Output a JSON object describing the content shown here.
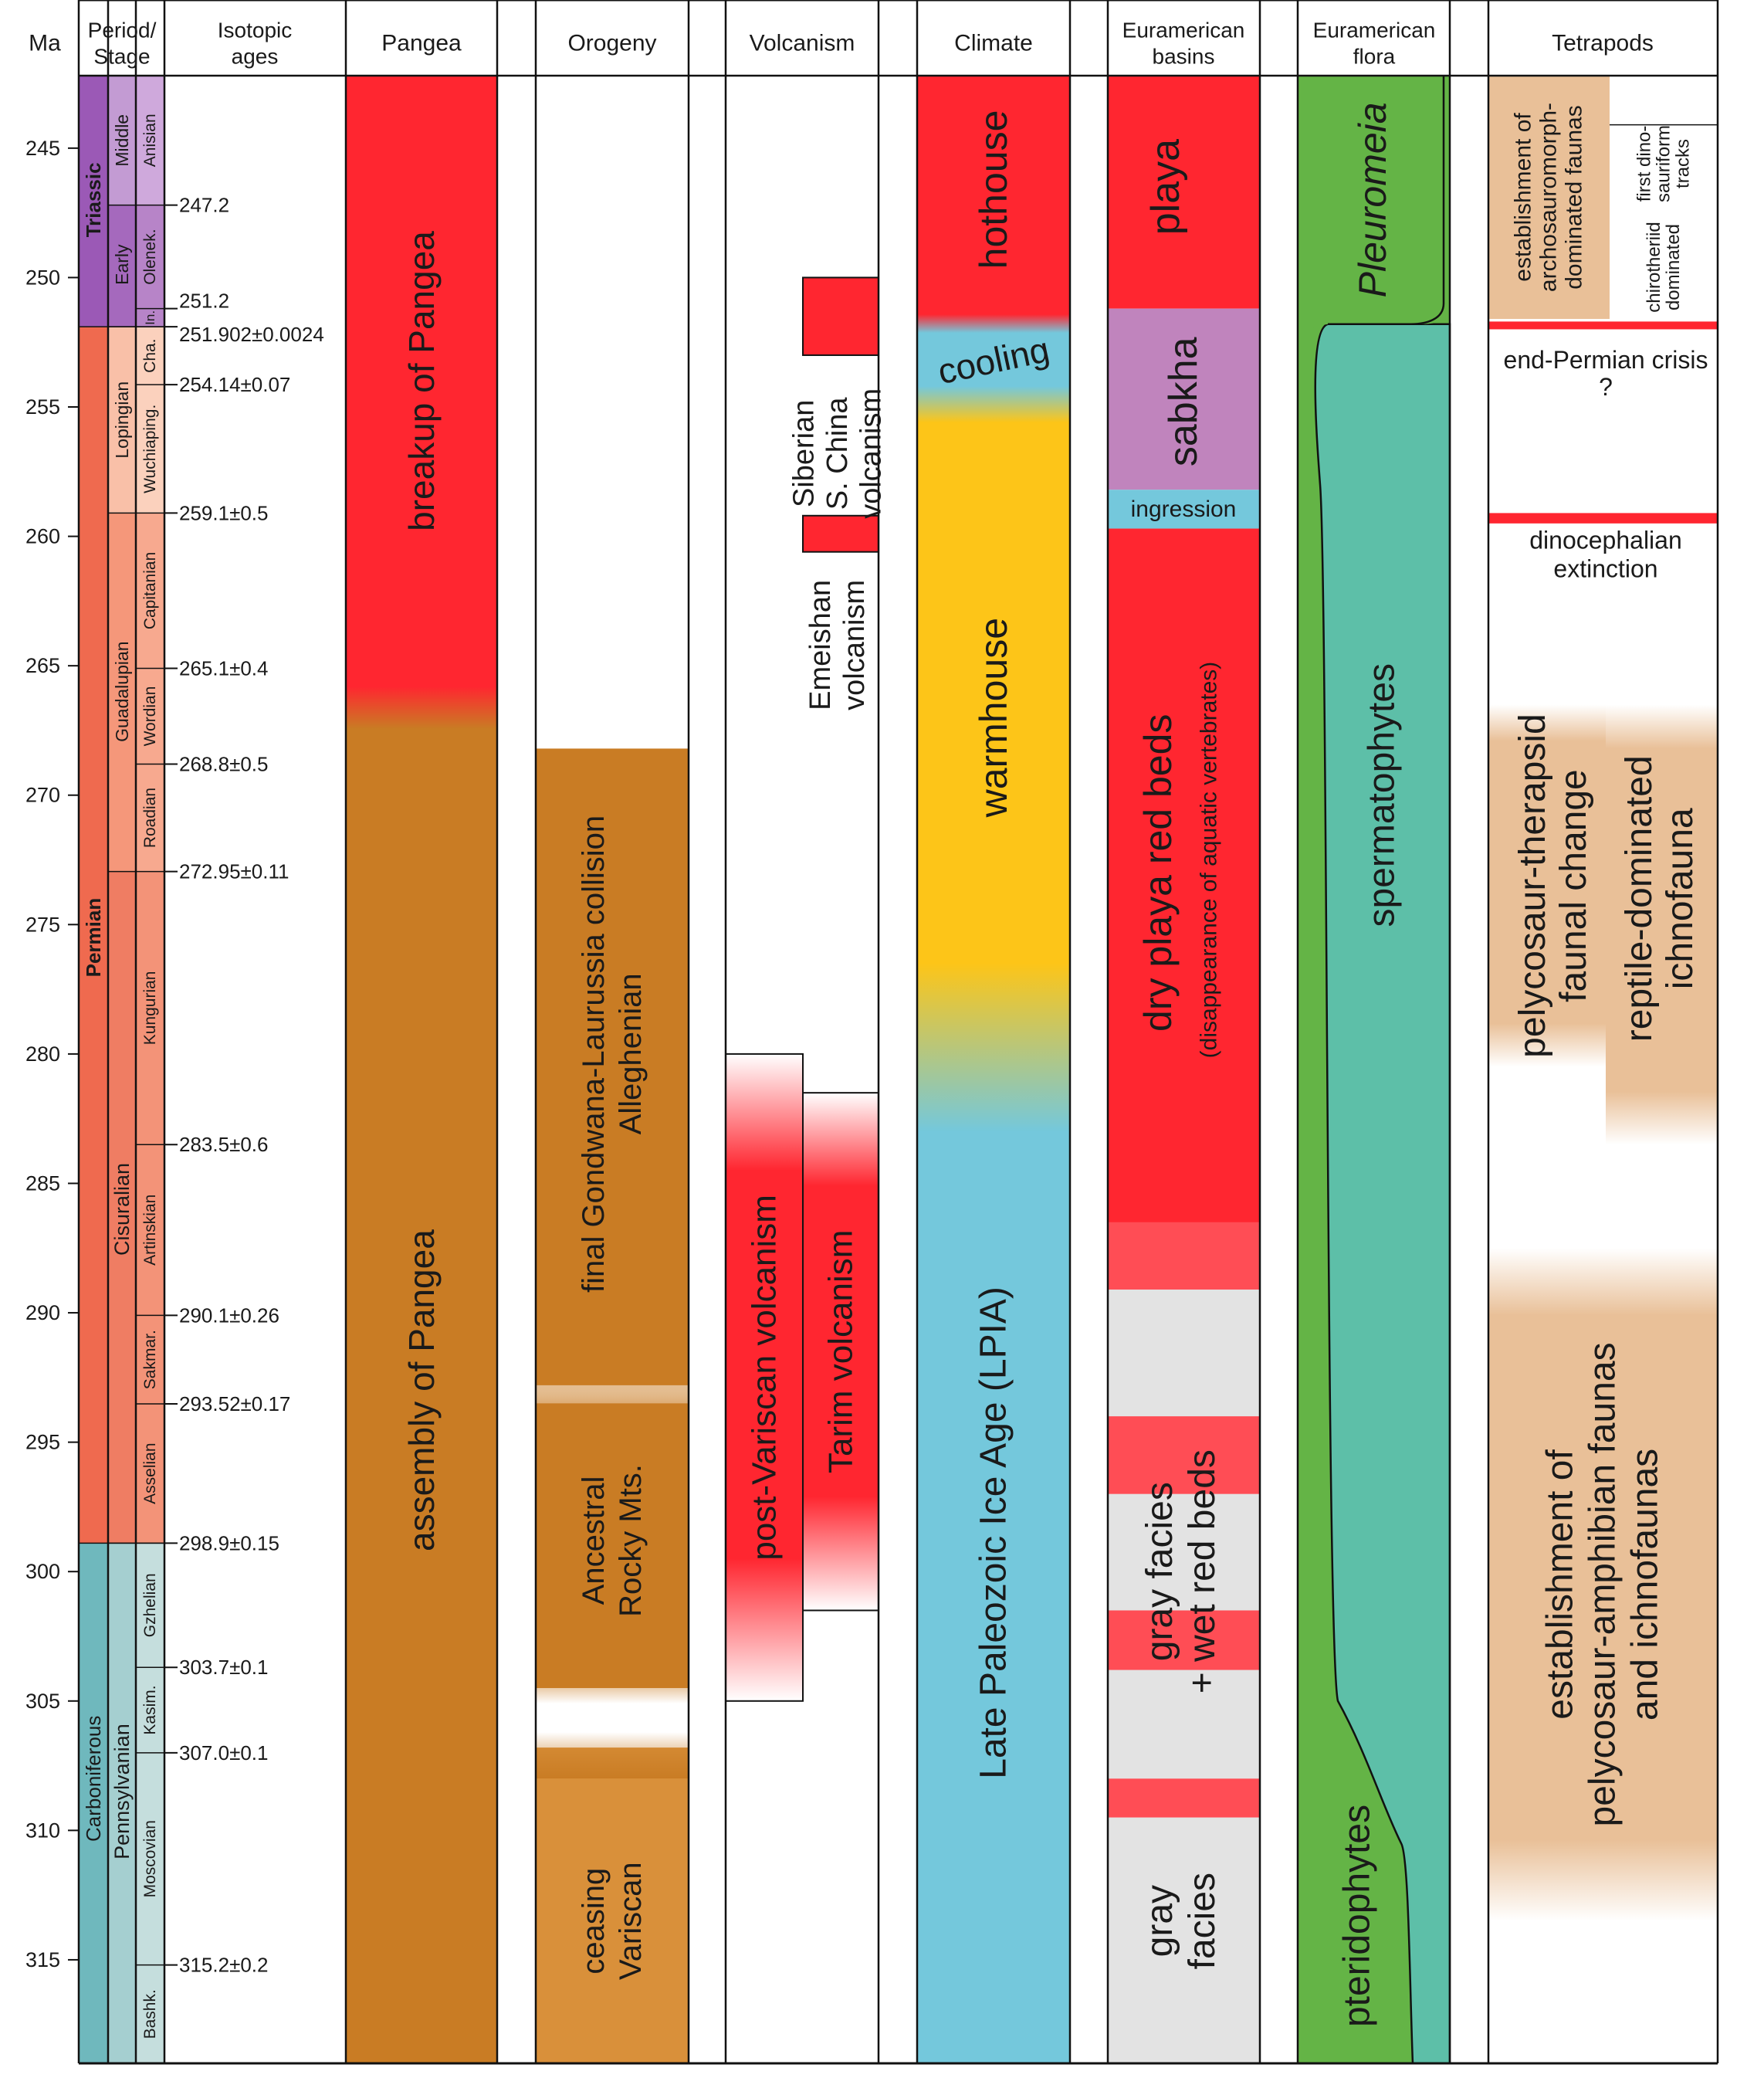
{
  "chart_data": {
    "type": "table",
    "axis": {
      "label": "Ma",
      "ylim": [
        242.2,
        319.0
      ],
      "ticks": [
        245,
        250,
        255,
        260,
        265,
        270,
        275,
        280,
        285,
        290,
        295,
        300,
        305,
        310,
        315
      ]
    },
    "headers": {
      "ma": "Ma",
      "period_stage": [
        "Period/",
        "Stage"
      ],
      "isotopic": [
        "Isotopic",
        "ages"
      ],
      "pangea": "Pangea",
      "orogeny": "Orogeny",
      "volcanism": "Volcanism",
      "climate": "Climate",
      "basins": [
        "Euramerican",
        "basins"
      ],
      "flora": [
        "Euramerican",
        "flora"
      ],
      "tetrapods": "Tetrapods"
    },
    "periods": [
      {
        "name": "Triassic",
        "top": 242.2,
        "base": 251.902,
        "color": "#9b59b6"
      },
      {
        "name": "Permian",
        "top": 251.902,
        "base": 298.9,
        "color": "#ef6a4f"
      },
      {
        "name": "Carboniferous",
        "top": 298.9,
        "base": 319.0,
        "color": "#6fb8bd"
      }
    ],
    "epochs": [
      {
        "name": "Middle",
        "top": 242.2,
        "base": 247.2,
        "color": "#c39bd3"
      },
      {
        "name": "Early",
        "top": 247.2,
        "base": 251.902,
        "color": "#a569bd"
      },
      {
        "name": "Lopingian",
        "top": 251.902,
        "base": 259.1,
        "color": "#f9c0a8"
      },
      {
        "name": "Guadalupian",
        "top": 259.1,
        "base": 272.95,
        "color": "#f5977a"
      },
      {
        "name": "Cisuralian",
        "top": 272.95,
        "base": 298.9,
        "color": "#ef7d63"
      },
      {
        "name": "Pennsylvanian",
        "top": 298.9,
        "base": 319.0,
        "color": "#a5cfd0"
      }
    ],
    "stages": [
      {
        "name": "Anisian",
        "top": 242.2,
        "base": 247.2,
        "color": "#cfa9dc"
      },
      {
        "name": "Olenek.",
        "top": 247.2,
        "base": 251.2,
        "color": "#b784c8"
      },
      {
        "name": "In.",
        "top": 251.2,
        "base": 251.902,
        "color": "#b784c8"
      },
      {
        "name": "Cha.",
        "top": 251.902,
        "base": 254.14,
        "color": "#fbd1bd"
      },
      {
        "name": "Wuchiaping.",
        "top": 254.14,
        "base": 259.1,
        "color": "#fbd1bd"
      },
      {
        "name": "Capitanian",
        "top": 259.1,
        "base": 265.1,
        "color": "#f7a98f"
      },
      {
        "name": "Wordian",
        "top": 265.1,
        "base": 268.8,
        "color": "#f7a98f"
      },
      {
        "name": "Roadian",
        "top": 268.8,
        "base": 272.95,
        "color": "#f7a98f"
      },
      {
        "name": "Kungurian",
        "top": 272.95,
        "base": 283.5,
        "color": "#f39378"
      },
      {
        "name": "Artinskian",
        "top": 283.5,
        "base": 290.1,
        "color": "#f39378"
      },
      {
        "name": "Sakmar.",
        "top": 290.1,
        "base": 293.52,
        "color": "#f39378"
      },
      {
        "name": "Asselian",
        "top": 293.52,
        "base": 298.9,
        "color": "#f39378"
      },
      {
        "name": "Gzhelian",
        "top": 298.9,
        "base": 303.7,
        "color": "#c5dedd"
      },
      {
        "name": "Kasim.",
        "top": 303.7,
        "base": 307.0,
        "color": "#c5dedd"
      },
      {
        "name": "Moscovian",
        "top": 307.0,
        "base": 315.2,
        "color": "#c5dedd"
      },
      {
        "name": "Bashk.",
        "top": 315.2,
        "base": 319.0,
        "color": "#c5dedd"
      }
    ],
    "isotopic_ages": [
      {
        "age": 247.2,
        "label": "247.2"
      },
      {
        "age": 251.2,
        "label": "251.2"
      },
      {
        "age": 251.902,
        "label": "251.902±0.0024"
      },
      {
        "age": 254.14,
        "label": "254.14±0.07"
      },
      {
        "age": 259.1,
        "label": "259.1±0.5"
      },
      {
        "age": 265.1,
        "label": "265.1±0.4"
      },
      {
        "age": 268.8,
        "label": "268.8±0.5"
      },
      {
        "age": 272.95,
        "label": "272.95±0.11"
      },
      {
        "age": 283.5,
        "label": "283.5±0.6"
      },
      {
        "age": 290.1,
        "label": "290.1±0.26"
      },
      {
        "age": 293.52,
        "label": "293.52±0.17"
      },
      {
        "age": 298.9,
        "label": "298.9±0.15"
      },
      {
        "age": 303.7,
        "label": "303.7±0.1"
      },
      {
        "age": 307.0,
        "label": "307.0±0.1"
      },
      {
        "age": 315.2,
        "label": "315.2±0.2"
      }
    ],
    "pangea": [
      {
        "label": "breakup of Pangea",
        "top": 242.2,
        "base": 266.1,
        "color": "#ff2630"
      },
      {
        "label": "assembly of Pangea",
        "top": 266.1,
        "base": 319.0,
        "color": "#c97c24"
      }
    ],
    "orogeny": [
      {
        "label": [
          "final Gondwana-Laurussia collision",
          "Alleghenian"
        ],
        "top": 268.2,
        "base": 292.8,
        "color": "#c97c24"
      },
      {
        "label": [
          "Ancestral",
          "Rocky Mts."
        ],
        "top": 293.5,
        "base": 304.5,
        "color": "#c97c24"
      },
      {
        "label": [
          "ceasing",
          "Variscan"
        ],
        "top": 306.8,
        "base": 319.0,
        "color": "#d9903a"
      }
    ],
    "volcanism": [
      {
        "label": [
          "Siberian",
          "S. China",
          "volcanism"
        ],
        "top": 250.0,
        "base": 253.0,
        "color": "#ff2630"
      },
      {
        "label": [
          "Emeishan",
          "volcanism"
        ],
        "top": 259.2,
        "base": 260.6,
        "color": "#ff2630"
      },
      {
        "label": "post-Variscan volcanism",
        "top": 280.0,
        "base": 305.0,
        "color": "#ff2630"
      },
      {
        "label": "Tarim volcanism",
        "top": 281.5,
        "base": 301.5,
        "color": "#ff2630"
      }
    ],
    "climate": [
      {
        "label": "hothouse",
        "top": 242.2,
        "base": 251.6,
        "color": "#ff2630"
      },
      {
        "label": "cooling",
        "top": 251.6,
        "base": 255.0,
        "color": "#74c8dc"
      },
      {
        "label": "warmhouse",
        "top": 255.0,
        "base": 279.5,
        "color": "#fdc518"
      },
      {
        "label": "Late Paleozoic Ice Age (LPIA)",
        "top": 279.5,
        "base": 319.0,
        "color": "#74c8dc"
      }
    ],
    "basins": [
      {
        "label": "playa",
        "top": 242.2,
        "base": 251.2,
        "color": "#ff2630"
      },
      {
        "label": "sabkha",
        "top": 251.2,
        "base": 258.2,
        "color": "#c084bd"
      },
      {
        "label": "ingression",
        "top": 258.2,
        "base": 259.7,
        "color": "#74c8dc"
      },
      {
        "label": "dry playa red beds",
        "sublabel": "(disappearance of aquatic vertebrates)",
        "top": 259.7,
        "base": 289.1,
        "color": "#ff2630"
      },
      {
        "label": [
          "gray facies",
          "+ wet red beds"
        ],
        "top": 289.1,
        "base": 309.5,
        "color": "#e3e3e3"
      },
      {
        "label": [
          "gray",
          "facies"
        ],
        "top": 309.5,
        "base": 319.0,
        "color": "#e3e3e3"
      }
    ],
    "flora": [
      {
        "label": "Pleuromeia",
        "color": "#64b446"
      },
      {
        "label": "spermatophytes",
        "color": "#5dbfa8"
      },
      {
        "label": "pteridophytes",
        "color": "#64b446"
      }
    ],
    "tetrapods": [
      {
        "label": [
          "establishment of",
          "archosauromorph-",
          "dominated faunas"
        ],
        "top": 242.2,
        "base": 251.6,
        "color": "#e9c098"
      },
      {
        "label": [
          "first dino-",
          "sauriform",
          "tracks"
        ]
      },
      {
        "label": [
          "chirotheriid",
          "dominated"
        ]
      },
      {
        "label": [
          "end-Permian crisis",
          "?"
        ]
      },
      {
        "label": [
          "dinocephalian",
          "extinction"
        ]
      },
      {
        "label": [
          "pelycosaur-therapsid",
          "faunal change"
        ],
        "top": 266.5,
        "base": 280.5,
        "color": "#e9c098"
      },
      {
        "label": [
          "reptile-dominated",
          "ichnofauna"
        ],
        "top": 266.5,
        "base": 283.5,
        "color": "#e9c098"
      },
      {
        "label": [
          "establishment of",
          "pelycosaur-amphibian faunas",
          "and ichnofaunas"
        ],
        "top": 287.5,
        "base": 313.5,
        "color": "#e9c098"
      }
    ]
  }
}
